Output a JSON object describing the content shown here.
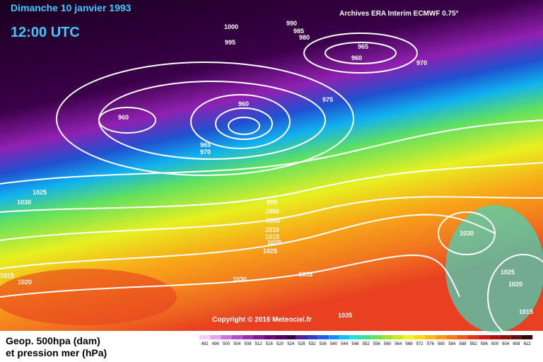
{
  "header": {
    "title": "Dimanche 10 janvier 1993",
    "time": "12:00 UTC",
    "source": "Archives ERA Interim ECMWF 0.75°"
  },
  "map": {
    "isobar_labels": [
      "1000",
      "995",
      "990",
      "985",
      "980",
      "965",
      "960",
      "970",
      "960",
      "960",
      "975",
      "965",
      "970",
      "1025",
      "1030",
      "995",
      "1000",
      "1005",
      "1010",
      "1015",
      "1020",
      "1025",
      "1035",
      "1030",
      "1015",
      "1020",
      "1030",
      "1025",
      "1020",
      "1015",
      "1035"
    ],
    "copyright": "Copyright © 2016 Meteociel.fr"
  },
  "legend": {
    "line1": "Geop. 500hpa (dam)",
    "line2": "et pression mer (hPa)",
    "colorbar": {
      "values": [
        492,
        496,
        500,
        504,
        508,
        512,
        516,
        520,
        524,
        528,
        532,
        536,
        540,
        544,
        548,
        552,
        556,
        560,
        564,
        568,
        572,
        576,
        580,
        584,
        588,
        592,
        596,
        600,
        604,
        608,
        612
      ],
      "colors": [
        "#f0d0f0",
        "#e0a8e8",
        "#c878d8",
        "#b050c8",
        "#9830b0",
        "#801890",
        "#680878",
        "#500060",
        "#380048",
        "#5020a0",
        "#3040c0",
        "#2060e0",
        "#1090f0",
        "#10c0f0",
        "#20e0d0",
        "#40e090",
        "#70e050",
        "#a0e030",
        "#d0e820",
        "#f0f020",
        "#f8d818",
        "#f8b818",
        "#f89818",
        "#f07818",
        "#e85818",
        "#e03818",
        "#d01818",
        "#b01010",
        "#901010",
        "#601010",
        "#300808"
      ]
    }
  }
}
